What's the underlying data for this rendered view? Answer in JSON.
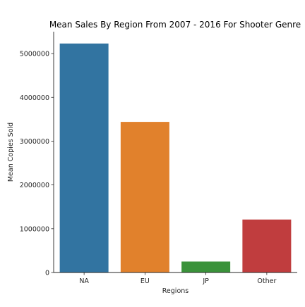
{
  "chart_data": {
    "type": "bar",
    "title": "Mean Sales By Region From 2007 - 2016 For Shooter Genre",
    "xlabel": "Regions",
    "ylabel": "Mean Copies Sold",
    "categories": [
      "NA",
      "EU",
      "JP",
      "Other"
    ],
    "values": [
      5230000,
      3440000,
      250000,
      1210000
    ],
    "colors": [
      "#3274a1",
      "#e1812c",
      "#3a923a",
      "#c03d3e"
    ],
    "ylim": [
      0,
      5500000
    ],
    "yticks": [
      0,
      1000000,
      2000000,
      3000000,
      4000000,
      5000000
    ],
    "ytick_labels": [
      "0",
      "1000000",
      "2000000",
      "3000000",
      "4000000",
      "5000000"
    ],
    "grid": false,
    "legend": "none"
  }
}
